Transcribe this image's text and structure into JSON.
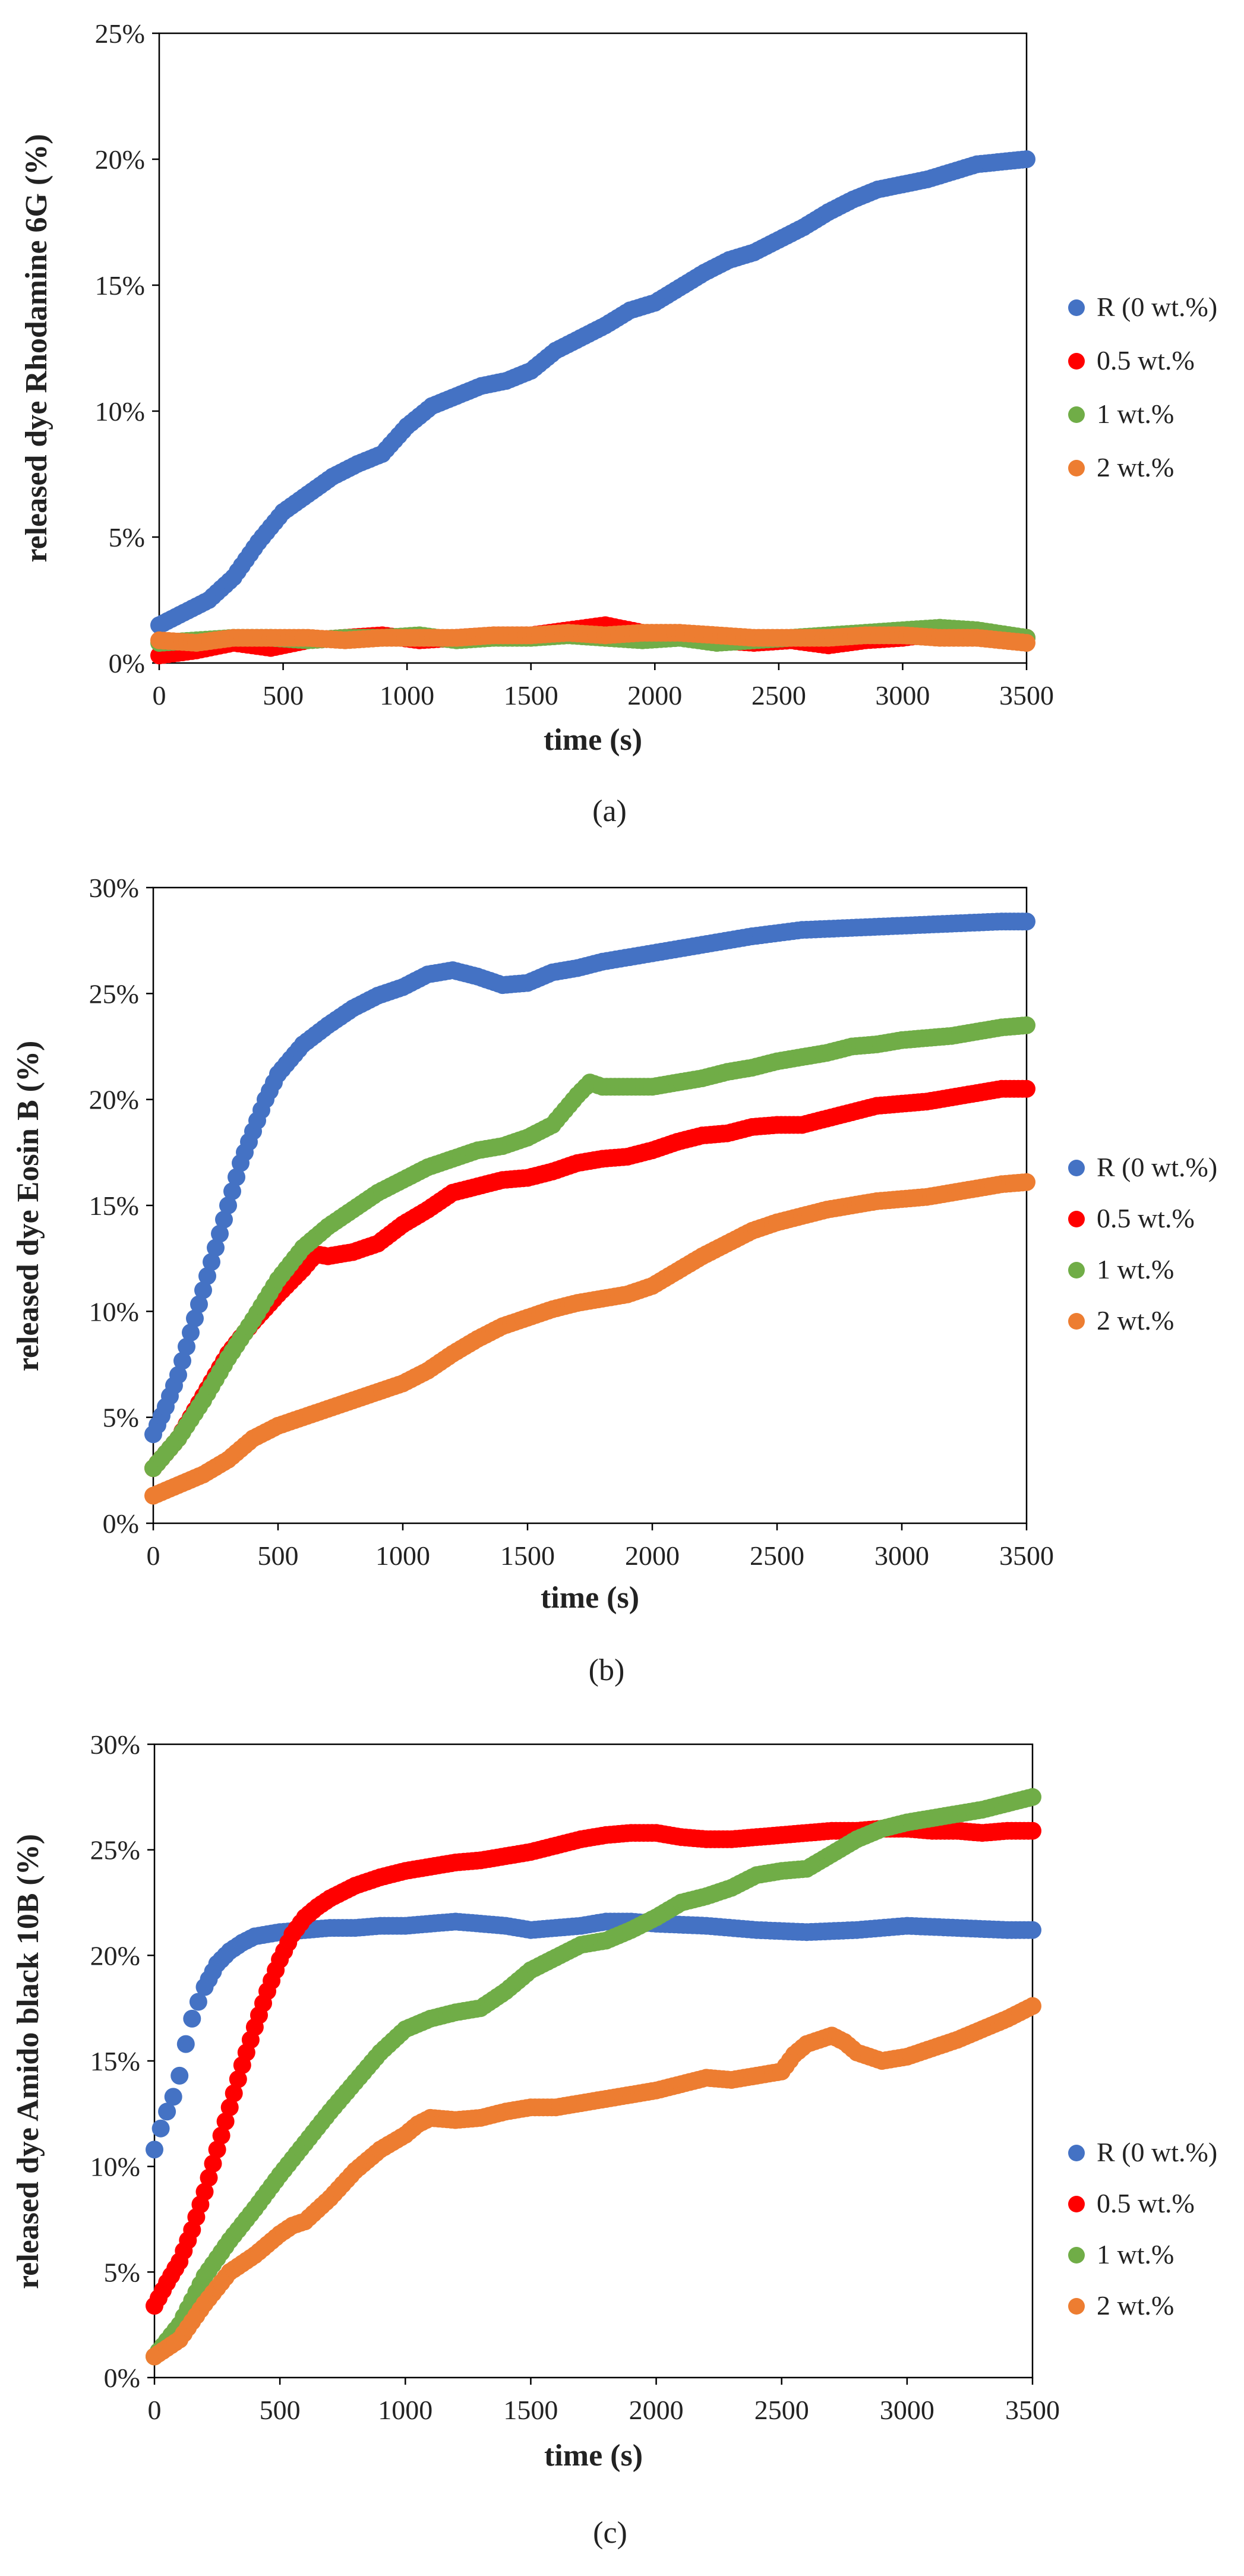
{
  "chart_data": [
    {
      "type": "scatter",
      "panel_label": "(a)",
      "xlabel": "time (s)",
      "ylabel": "released dye Rhodamine 6G (%)",
      "xlim": [
        0,
        3500
      ],
      "ylim": [
        0,
        25
      ],
      "xticks": [
        "0",
        "500",
        "1000",
        "1500",
        "2000",
        "2500",
        "3000",
        "3500"
      ],
      "yticks": [
        "0%",
        "5%",
        "10%",
        "15%",
        "20%",
        "25%"
      ],
      "legend_position": "right",
      "series": [
        {
          "name": "R (0 wt.%)",
          "color": "#4472C4",
          "x": [
            0,
            100,
            200,
            300,
            400,
            500,
            600,
            700,
            800,
            900,
            1000,
            1100,
            1200,
            1300,
            1400,
            1500,
            1600,
            1700,
            1800,
            1900,
            2000,
            2100,
            2200,
            2300,
            2400,
            2500,
            2600,
            2700,
            2800,
            2900,
            3000,
            3100,
            3200,
            3300,
            3400,
            3500
          ],
          "y": [
            1.5,
            2.0,
            2.5,
            3.4,
            4.8,
            6.0,
            6.7,
            7.4,
            7.9,
            8.3,
            9.4,
            10.2,
            10.6,
            11.0,
            11.2,
            11.6,
            12.4,
            12.9,
            13.4,
            14.0,
            14.3,
            14.9,
            15.5,
            16.0,
            16.3,
            16.8,
            17.3,
            17.9,
            18.4,
            18.8,
            19.0,
            19.2,
            19.5,
            19.8,
            19.9,
            20.0
          ]
        },
        {
          "name": "0.5 wt.%",
          "color": "#FF0000",
          "x": [
            0,
            150,
            300,
            450,
            600,
            750,
            900,
            1050,
            1200,
            1350,
            1500,
            1650,
            1800,
            1950,
            2100,
            2250,
            2400,
            2550,
            2700,
            2850,
            3000,
            3150,
            3300,
            3500
          ],
          "y": [
            0.3,
            0.5,
            0.8,
            0.6,
            0.9,
            1.0,
            1.1,
            0.9,
            1.0,
            1.1,
            1.1,
            1.3,
            1.5,
            1.2,
            1.1,
            0.9,
            0.8,
            0.9,
            0.7,
            0.9,
            1.0,
            1.2,
            1.1,
            1.0
          ]
        },
        {
          "name": "1 wt.%",
          "color": "#70AD47",
          "x": [
            0,
            150,
            300,
            450,
            600,
            750,
            900,
            1050,
            1200,
            1350,
            1500,
            1650,
            1800,
            1950,
            2100,
            2250,
            2400,
            2550,
            2700,
            2850,
            3000,
            3150,
            3300,
            3500
          ],
          "y": [
            0.8,
            0.9,
            1.0,
            1.0,
            0.9,
            1.0,
            1.0,
            1.1,
            0.9,
            1.0,
            1.0,
            1.1,
            1.0,
            0.9,
            1.0,
            0.8,
            0.9,
            1.0,
            1.1,
            1.2,
            1.3,
            1.4,
            1.3,
            1.0
          ]
        },
        {
          "name": "2 wt.%",
          "color": "#ED7D31",
          "x": [
            0,
            150,
            300,
            450,
            600,
            750,
            900,
            1050,
            1200,
            1350,
            1500,
            1650,
            1800,
            1950,
            2100,
            2250,
            2400,
            2550,
            2700,
            2850,
            3000,
            3150,
            3300,
            3500
          ],
          "y": [
            0.9,
            0.8,
            1.0,
            1.0,
            1.0,
            0.9,
            1.0,
            1.0,
            1.0,
            1.1,
            1.1,
            1.2,
            1.1,
            1.2,
            1.2,
            1.1,
            1.0,
            1.0,
            1.0,
            1.1,
            1.1,
            1.0,
            1.0,
            0.8
          ]
        }
      ]
    },
    {
      "type": "scatter",
      "panel_label": "(b)",
      "xlabel": "time (s)",
      "ylabel": "released dye Eosin B (%)",
      "xlim": [
        0,
        3500
      ],
      "ylim": [
        0,
        30
      ],
      "xticks": [
        "0",
        "500",
        "1000",
        "1500",
        "2000",
        "2500",
        "3000",
        "3500"
      ],
      "yticks": [
        "0%",
        "5%",
        "10%",
        "15%",
        "20%",
        "25%",
        "30%"
      ],
      "legend_position": "right",
      "series": [
        {
          "name": "R (0 wt.%)",
          "color": "#4472C4",
          "x": [
            0,
            50,
            100,
            150,
            200,
            250,
            300,
            350,
            400,
            450,
            500,
            600,
            700,
            800,
            900,
            1000,
            1100,
            1200,
            1300,
            1400,
            1500,
            1600,
            1700,
            1800,
            2000,
            2200,
            2400,
            2600,
            2800,
            3000,
            3200,
            3400,
            3500
          ],
          "y": [
            4.2,
            5.5,
            7.0,
            9.0,
            11.0,
            13.0,
            15.0,
            17.0,
            18.5,
            20.0,
            21.2,
            22.6,
            23.5,
            24.3,
            24.9,
            25.3,
            25.9,
            26.1,
            25.8,
            25.4,
            25.5,
            26.0,
            26.2,
            26.5,
            26.9,
            27.3,
            27.7,
            28.0,
            28.1,
            28.2,
            28.3,
            28.4,
            28.4
          ]
        },
        {
          "name": "0.5 wt.%",
          "color": "#FF0000",
          "x": [
            0,
            100,
            200,
            300,
            400,
            500,
            600,
            650,
            700,
            800,
            900,
            1000,
            1100,
            1200,
            1300,
            1400,
            1500,
            1600,
            1700,
            1800,
            1900,
            2000,
            2100,
            2200,
            2300,
            2400,
            2500,
            2600,
            2700,
            2800,
            2900,
            3000,
            3100,
            3200,
            3300,
            3400,
            3500
          ],
          "y": [
            2.6,
            4.0,
            6.0,
            8.0,
            9.5,
            10.8,
            12.0,
            12.7,
            12.6,
            12.8,
            13.2,
            14.1,
            14.8,
            15.6,
            15.9,
            16.2,
            16.3,
            16.6,
            17.0,
            17.2,
            17.3,
            17.6,
            18.0,
            18.3,
            18.4,
            18.7,
            18.8,
            18.8,
            19.1,
            19.4,
            19.7,
            19.8,
            19.9,
            20.1,
            20.3,
            20.5,
            20.5
          ]
        },
        {
          "name": "1 wt.%",
          "color": "#70AD47",
          "x": [
            0,
            100,
            200,
            300,
            400,
            500,
            600,
            700,
            800,
            900,
            1000,
            1100,
            1200,
            1300,
            1400,
            1500,
            1600,
            1700,
            1750,
            1800,
            1900,
            2000,
            2100,
            2200,
            2300,
            2400,
            2500,
            2600,
            2700,
            2800,
            2900,
            3000,
            3100,
            3200,
            3300,
            3400,
            3500
          ],
          "y": [
            2.6,
            4.0,
            5.8,
            7.8,
            9.6,
            11.5,
            13.0,
            14.0,
            14.8,
            15.6,
            16.2,
            16.8,
            17.2,
            17.6,
            17.8,
            18.2,
            18.8,
            20.2,
            20.8,
            20.6,
            20.6,
            20.6,
            20.8,
            21.0,
            21.3,
            21.5,
            21.8,
            22.0,
            22.2,
            22.5,
            22.6,
            22.8,
            22.9,
            23.0,
            23.2,
            23.4,
            23.5
          ]
        },
        {
          "name": "2 wt.%",
          "color": "#ED7D31",
          "x": [
            0,
            100,
            200,
            300,
            400,
            500,
            600,
            700,
            800,
            900,
            1000,
            1100,
            1200,
            1300,
            1400,
            1500,
            1600,
            1700,
            1800,
            1900,
            2000,
            2100,
            2200,
            2300,
            2400,
            2500,
            2600,
            2700,
            2800,
            2900,
            3000,
            3100,
            3200,
            3300,
            3400,
            3500
          ],
          "y": [
            1.3,
            1.8,
            2.3,
            3.0,
            4.0,
            4.6,
            5.0,
            5.4,
            5.8,
            6.2,
            6.6,
            7.2,
            8.0,
            8.7,
            9.3,
            9.7,
            10.1,
            10.4,
            10.6,
            10.8,
            11.2,
            11.9,
            12.6,
            13.2,
            13.8,
            14.2,
            14.5,
            14.8,
            15.0,
            15.2,
            15.3,
            15.4,
            15.6,
            15.8,
            16.0,
            16.1
          ]
        }
      ]
    },
    {
      "type": "scatter",
      "panel_label": "(c)",
      "xlabel": "time (s)",
      "ylabel": "released dye Amido black 10B (%)",
      "xlim": [
        0,
        3500
      ],
      "ylim": [
        0,
        30
      ],
      "xticks": [
        "0",
        "500",
        "1000",
        "1500",
        "2000",
        "2500",
        "3000",
        "3500"
      ],
      "yticks": [
        "0%",
        "5%",
        "10%",
        "15%",
        "20%",
        "25%",
        "30%"
      ],
      "legend_position": "right",
      "series": [
        {
          "name": "R (0 wt.%)",
          "color": "#4472C4",
          "x": [
            0,
            25,
            50,
            75,
            100,
            125,
            150,
            175,
            200,
            250,
            300,
            350,
            400,
            500,
            600,
            700,
            800,
            900,
            1000,
            1100,
            1200,
            1300,
            1400,
            1500,
            1600,
            1700,
            1800,
            1900,
            2000,
            2200,
            2400,
            2600,
            2800,
            3000,
            3200,
            3400,
            3500
          ],
          "y": [
            10.8,
            11.8,
            12.6,
            13.3,
            14.3,
            15.8,
            17.0,
            17.8,
            18.5,
            19.6,
            20.2,
            20.6,
            20.9,
            21.1,
            21.2,
            21.3,
            21.3,
            21.4,
            21.4,
            21.5,
            21.6,
            21.5,
            21.4,
            21.2,
            21.3,
            21.4,
            21.6,
            21.6,
            21.5,
            21.4,
            21.2,
            21.1,
            21.2,
            21.4,
            21.3,
            21.2,
            21.2
          ]
        },
        {
          "name": "0.5 wt.%",
          "color": "#FF0000",
          "x": [
            0,
            50,
            100,
            150,
            200,
            250,
            300,
            350,
            400,
            450,
            500,
            550,
            600,
            650,
            700,
            800,
            900,
            1000,
            1100,
            1200,
            1300,
            1400,
            1500,
            1600,
            1700,
            1800,
            1900,
            2000,
            2100,
            2200,
            2300,
            2400,
            2500,
            2600,
            2700,
            2800,
            2900,
            3000,
            3100,
            3200,
            3300,
            3400,
            3500
          ],
          "y": [
            3.4,
            4.5,
            5.5,
            7.0,
            8.8,
            10.8,
            12.8,
            14.8,
            16.6,
            18.3,
            19.8,
            21.0,
            21.8,
            22.3,
            22.7,
            23.3,
            23.7,
            24.0,
            24.2,
            24.4,
            24.5,
            24.7,
            24.9,
            25.2,
            25.5,
            25.7,
            25.8,
            25.8,
            25.6,
            25.5,
            25.5,
            25.6,
            25.7,
            25.8,
            25.9,
            25.9,
            26.0,
            26.0,
            25.9,
            25.9,
            25.8,
            25.9,
            25.9
          ]
        },
        {
          "name": "1 wt.%",
          "color": "#70AD47",
          "x": [
            0,
            100,
            200,
            300,
            400,
            500,
            600,
            700,
            800,
            900,
            1000,
            1100,
            1200,
            1300,
            1400,
            1500,
            1600,
            1700,
            1800,
            1900,
            2000,
            2100,
            2200,
            2300,
            2400,
            2500,
            2600,
            2700,
            2800,
            2900,
            3000,
            3100,
            3200,
            3300,
            3400,
            3500
          ],
          "y": [
            1.0,
            2.5,
            4.8,
            6.5,
            8.0,
            9.6,
            11.1,
            12.6,
            14.0,
            15.4,
            16.5,
            17.0,
            17.3,
            17.5,
            18.3,
            19.3,
            19.9,
            20.5,
            20.7,
            21.2,
            21.8,
            22.5,
            22.8,
            23.2,
            23.8,
            24.0,
            24.1,
            24.8,
            25.5,
            26.0,
            26.3,
            26.5,
            26.7,
            26.9,
            27.2,
            27.5
          ]
        },
        {
          "name": "2 wt.%",
          "color": "#ED7D31",
          "x": [
            0,
            100,
            200,
            300,
            400,
            500,
            550,
            600,
            700,
            800,
            900,
            1000,
            1050,
            1100,
            1200,
            1300,
            1400,
            1500,
            1600,
            1700,
            1800,
            1900,
            2000,
            2100,
            2200,
            2300,
            2400,
            2500,
            2550,
            2600,
            2650,
            2700,
            2750,
            2800,
            2900,
            3000,
            3100,
            3200,
            3300,
            3400,
            3500
          ],
          "y": [
            1.0,
            1.8,
            3.5,
            5.0,
            5.8,
            6.8,
            7.2,
            7.4,
            8.5,
            9.8,
            10.8,
            11.5,
            12.0,
            12.3,
            12.2,
            12.3,
            12.6,
            12.8,
            12.8,
            13.0,
            13.2,
            13.4,
            13.6,
            13.9,
            14.2,
            14.1,
            14.3,
            14.5,
            15.3,
            15.8,
            16.0,
            16.2,
            15.9,
            15.4,
            15.0,
            15.2,
            15.6,
            16.0,
            16.5,
            17.0,
            17.6
          ]
        }
      ]
    }
  ]
}
